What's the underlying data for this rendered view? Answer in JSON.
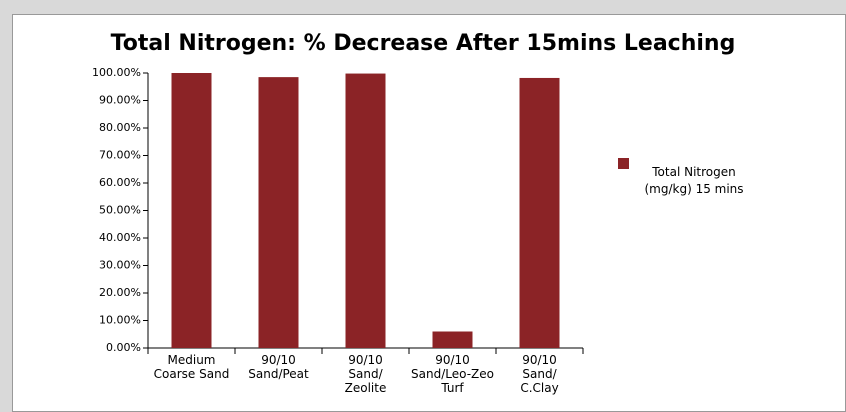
{
  "chart_data": {
    "type": "bar",
    "title": "Total Nitrogen: % Decrease After 15mins Leaching",
    "categories": [
      [
        "Medium",
        "Coarse Sand"
      ],
      [
        "90/10",
        "Sand/Peat"
      ],
      [
        "90/10",
        "Sand/",
        "Zeolite"
      ],
      [
        "90/10",
        "Sand/Leo-Zeo",
        "Turf"
      ],
      [
        "90/10",
        "Sand/",
        "C.Clay"
      ]
    ],
    "series": [
      {
        "name": "Total Nitrogen (mg/kg) 15 mins",
        "color": "#8b2326",
        "values": [
          100,
          98.5,
          99.8,
          6,
          98.2
        ]
      }
    ],
    "ylim": [
      0,
      100
    ],
    "yticks": [
      {
        "value": 0,
        "label": "0.00%"
      },
      {
        "value": 10,
        "label": "10.00%"
      },
      {
        "value": 20,
        "label": "20.00%"
      },
      {
        "value": 30,
        "label": "30.00%"
      },
      {
        "value": 40,
        "label": "40.00%"
      },
      {
        "value": 50,
        "label": "50.00%"
      },
      {
        "value": 60,
        "label": "60.00%"
      },
      {
        "value": 70,
        "label": "70.00%"
      },
      {
        "value": 80,
        "label": "80.00%"
      },
      {
        "value": 90,
        "label": "90.00%"
      },
      {
        "value": 100,
        "label": "100.00%"
      }
    ],
    "legend": "right"
  }
}
